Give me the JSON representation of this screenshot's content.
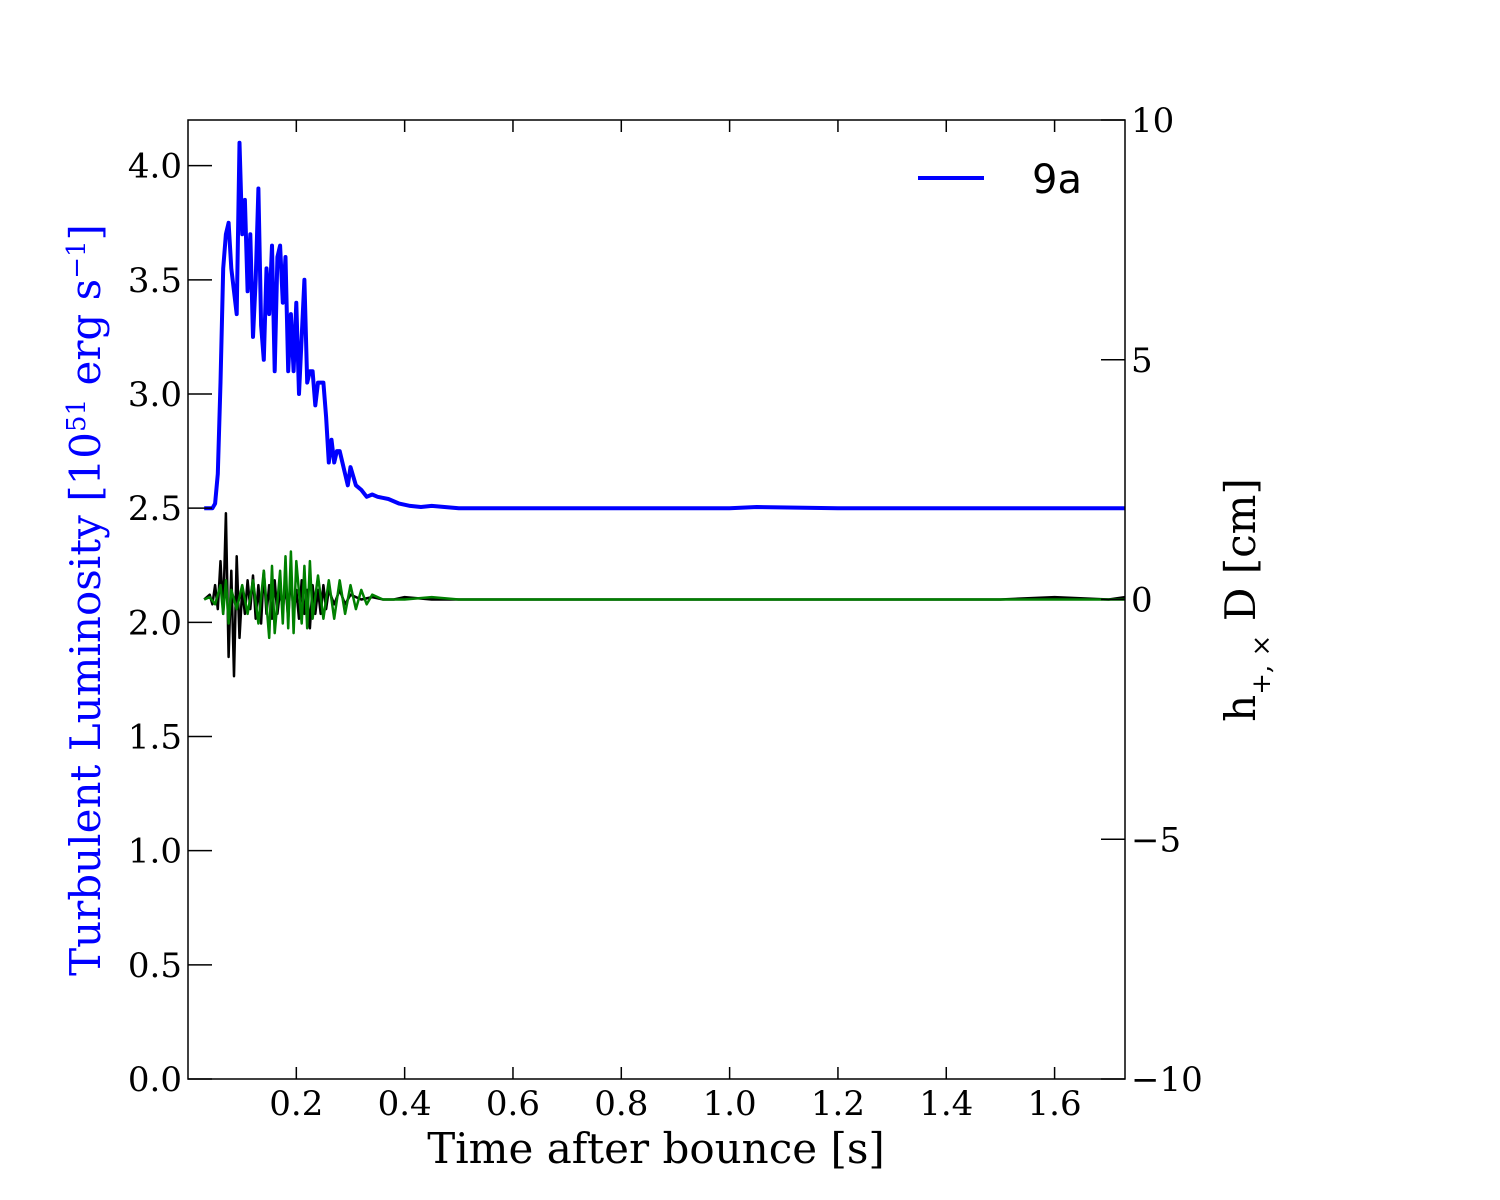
{
  "chart_data": {
    "type": "line",
    "xlabel": "Time after bounce [s]",
    "ylabel_left": {
      "prefix": "Turbulent Luminosity [10",
      "exp": "51",
      "mid": " erg s",
      "exp2": "−1",
      "suffix": "]"
    },
    "ylabel_right": {
      "h": "h",
      "sub": "+, ×",
      "rest": " D [cm]"
    },
    "xlim": [
      0.0,
      1.73
    ],
    "ylim_left": [
      0.0,
      4.2
    ],
    "ylim_right": [
      -10,
      10
    ],
    "x_ticks": [
      "0.2",
      "0.4",
      "0.6",
      "0.8",
      "1.0",
      "1.2",
      "1.4",
      "1.6"
    ],
    "y_left_ticks": [
      "0.0",
      "0.5",
      "1.0",
      "1.5",
      "2.0",
      "2.5",
      "3.0",
      "3.5",
      "4.0"
    ],
    "y_right_ticks": [
      "−10",
      "−5",
      "0",
      "5",
      "10"
    ],
    "legend_position": "top-right",
    "colors": {
      "luminosity": "#0000ff",
      "h_plus": "#000000",
      "h_cross": "#008000"
    },
    "series": [
      {
        "name": "9a",
        "axis": "left",
        "x": [
          0.03,
          0.045,
          0.05,
          0.055,
          0.06,
          0.065,
          0.07,
          0.075,
          0.08,
          0.085,
          0.09,
          0.095,
          0.1,
          0.105,
          0.11,
          0.115,
          0.12,
          0.125,
          0.13,
          0.135,
          0.14,
          0.145,
          0.15,
          0.155,
          0.16,
          0.165,
          0.17,
          0.175,
          0.18,
          0.185,
          0.19,
          0.195,
          0.2,
          0.205,
          0.21,
          0.215,
          0.22,
          0.225,
          0.23,
          0.235,
          0.24,
          0.245,
          0.25,
          0.255,
          0.26,
          0.265,
          0.27,
          0.275,
          0.28,
          0.285,
          0.29,
          0.295,
          0.3,
          0.31,
          0.32,
          0.33,
          0.34,
          0.35,
          0.37,
          0.39,
          0.41,
          0.43,
          0.45,
          0.5,
          0.6,
          0.8,
          1.0,
          1.05,
          1.2,
          1.4,
          1.6,
          1.73
        ],
        "values": [
          2.5,
          2.5,
          2.52,
          2.65,
          3.05,
          3.55,
          3.7,
          3.75,
          3.55,
          3.45,
          3.35,
          4.1,
          3.7,
          3.85,
          3.45,
          3.7,
          3.25,
          3.5,
          3.9,
          3.3,
          3.15,
          3.55,
          3.35,
          3.65,
          3.1,
          3.6,
          3.65,
          3.4,
          3.6,
          3.1,
          3.35,
          3.1,
          3.4,
          3.0,
          3.25,
          3.5,
          3.05,
          3.1,
          3.1,
          2.95,
          3.05,
          3.05,
          3.05,
          2.9,
          2.7,
          2.8,
          2.7,
          2.75,
          2.75,
          2.7,
          2.65,
          2.6,
          2.68,
          2.6,
          2.58,
          2.55,
          2.56,
          2.55,
          2.54,
          2.52,
          2.51,
          2.505,
          2.51,
          2.5,
          2.5,
          2.5,
          2.5,
          2.505,
          2.5,
          2.5,
          2.5,
          2.5
        ]
      },
      {
        "name": "",
        "axis": "right",
        "role": "h_plus",
        "x": [
          0.03,
          0.04,
          0.045,
          0.05,
          0.055,
          0.06,
          0.065,
          0.07,
          0.075,
          0.08,
          0.085,
          0.09,
          0.095,
          0.1,
          0.105,
          0.11,
          0.115,
          0.12,
          0.125,
          0.13,
          0.135,
          0.14,
          0.145,
          0.15,
          0.155,
          0.16,
          0.165,
          0.17,
          0.175,
          0.18,
          0.185,
          0.19,
          0.195,
          0.2,
          0.205,
          0.21,
          0.215,
          0.22,
          0.225,
          0.23,
          0.235,
          0.24,
          0.245,
          0.25,
          0.255,
          0.26,
          0.27,
          0.28,
          0.29,
          0.3,
          0.32,
          0.34,
          0.36,
          0.38,
          0.4,
          0.45,
          0.5,
          0.7,
          0.9,
          1.1,
          1.3,
          1.5,
          1.6,
          1.7,
          1.73
        ],
        "values": [
          0.0,
          0.1,
          -0.1,
          0.3,
          -0.2,
          0.8,
          -0.3,
          1.8,
          -1.2,
          0.6,
          -1.6,
          0.9,
          -0.8,
          0.2,
          -0.3,
          0.4,
          -0.2,
          0.5,
          -0.4,
          0.3,
          -0.5,
          0.6,
          -0.3,
          0.3,
          -0.4,
          0.4,
          -0.3,
          0.2,
          -0.2,
          0.3,
          -0.4,
          0.5,
          -0.3,
          0.2,
          -0.4,
          0.4,
          -0.3,
          0.2,
          -0.6,
          0.3,
          -0.3,
          0.2,
          -0.3,
          0.3,
          -0.2,
          0.2,
          -0.1,
          0.2,
          -0.1,
          0.1,
          0.0,
          0.05,
          0.0,
          0.0,
          0.05,
          0.0,
          0.0,
          0.0,
          0.0,
          0.0,
          0.0,
          0.0,
          0.05,
          0.0,
          0.05
        ]
      },
      {
        "name": "",
        "axis": "right",
        "role": "h_cross",
        "x": [
          0.03,
          0.04,
          0.05,
          0.06,
          0.065,
          0.07,
          0.075,
          0.08,
          0.09,
          0.1,
          0.11,
          0.12,
          0.13,
          0.14,
          0.15,
          0.155,
          0.16,
          0.17,
          0.175,
          0.18,
          0.185,
          0.19,
          0.195,
          0.2,
          0.21,
          0.215,
          0.22,
          0.225,
          0.23,
          0.24,
          0.25,
          0.26,
          0.27,
          0.28,
          0.29,
          0.3,
          0.31,
          0.32,
          0.33,
          0.34,
          0.36,
          0.4,
          0.45,
          0.5,
          0.7,
          0.9,
          1.1,
          1.3,
          1.5,
          1.7,
          1.73
        ],
        "values": [
          0.0,
          0.05,
          -0.1,
          0.3,
          -0.3,
          0.4,
          -0.5,
          0.2,
          -0.2,
          0.3,
          -0.3,
          0.4,
          -0.5,
          0.6,
          -0.8,
          0.7,
          -0.7,
          0.6,
          -0.5,
          0.9,
          -0.6,
          1.0,
          -0.7,
          0.8,
          -0.5,
          0.7,
          -0.6,
          0.8,
          -0.4,
          0.5,
          -0.4,
          0.4,
          -0.4,
          0.4,
          -0.3,
          0.3,
          -0.2,
          0.2,
          -0.1,
          0.1,
          0.0,
          0.0,
          0.05,
          0.0,
          0.0,
          0.0,
          0.0,
          0.0,
          0.0,
          0.0,
          0.0
        ]
      }
    ]
  }
}
